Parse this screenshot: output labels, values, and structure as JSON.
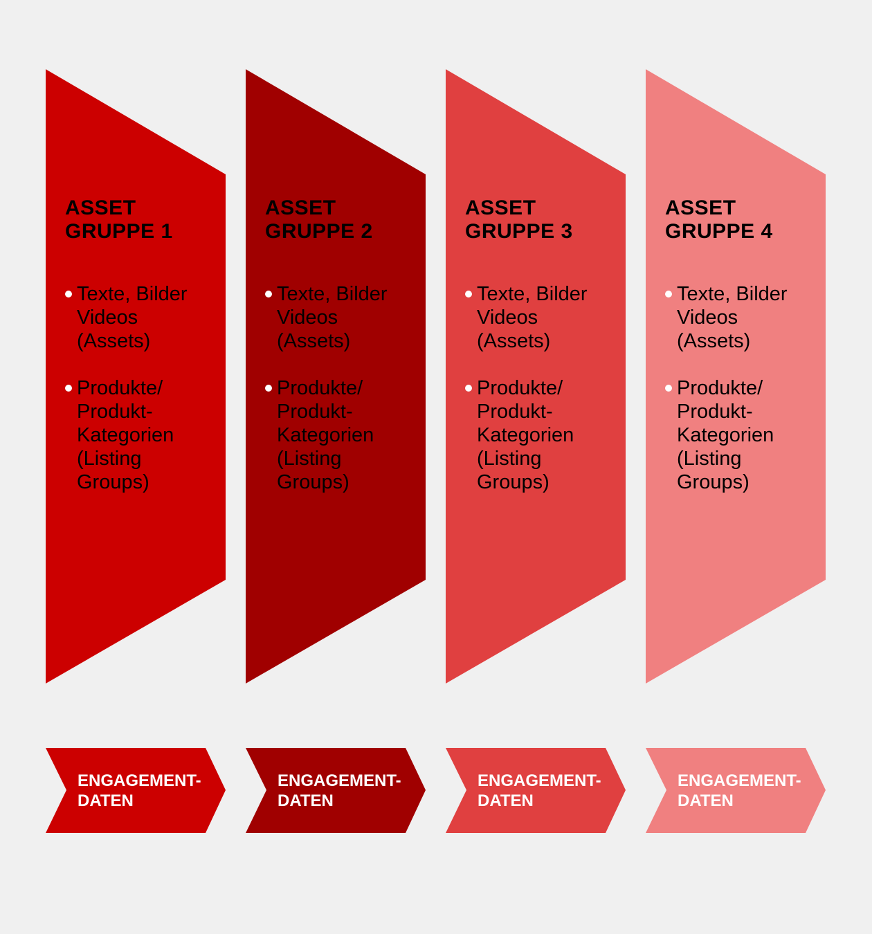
{
  "colors": [
    "#cc0000",
    "#a00000",
    "#e04040",
    "#f08080"
  ],
  "background": "#f0f0f0",
  "groups": [
    {
      "title_lines": [
        "ASSET",
        "GRUPPE 1"
      ],
      "bullets": [
        {
          "lines": [
            "Texte, Bilder",
            "Videos",
            "(Assets)"
          ]
        },
        {
          "lines": [
            "Produkte/",
            "Produkt-",
            "Kategorien",
            "(Listing",
            "Groups)"
          ]
        }
      ],
      "arrow_lines": [
        "ENGAGEMENT-",
        "DATEN"
      ]
    },
    {
      "title_lines": [
        "ASSET",
        "GRUPPE 2"
      ],
      "bullets": [
        {
          "lines": [
            "Texte, Bilder",
            "Videos",
            "(Assets)"
          ]
        },
        {
          "lines": [
            "Produkte/",
            "Produkt-",
            "Kategorien",
            "(Listing",
            "Groups)"
          ]
        }
      ],
      "arrow_lines": [
        "ENGAGEMENT-",
        "DATEN"
      ]
    },
    {
      "title_lines": [
        "ASSET",
        "GRUPPE 3"
      ],
      "bullets": [
        {
          "lines": [
            "Texte, Bilder",
            "Videos",
            "(Assets)"
          ]
        },
        {
          "lines": [
            "Produkte/",
            "Produkt-",
            "Kategorien",
            "(Listing",
            "Groups)"
          ]
        }
      ],
      "arrow_lines": [
        "ENGAGEMENT-",
        "DATEN"
      ]
    },
    {
      "title_lines": [
        "ASSET",
        "GRUPPE 4"
      ],
      "bullets": [
        {
          "lines": [
            "Texte, Bilder",
            "Videos",
            "(Assets)"
          ]
        },
        {
          "lines": [
            "Produkte/",
            "Produkt-",
            "Kategorien",
            "(Listing",
            "Groups)"
          ]
        }
      ],
      "arrow_lines": [
        "ENGAGEMENT-",
        "DATEN"
      ]
    }
  ]
}
